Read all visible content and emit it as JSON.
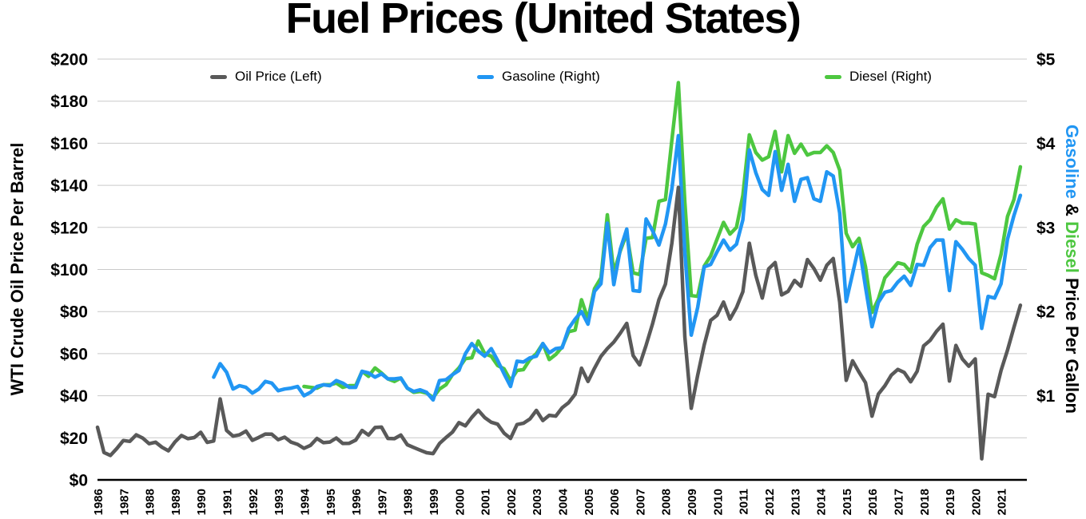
{
  "title": "Fuel Prices (United States)",
  "legend": {
    "items": [
      {
        "label": "Oil Price (Left)",
        "color": "#595959"
      },
      {
        "label": "Gasoline (Right)",
        "color": "#2196F3"
      },
      {
        "label": "Diesel (Right)",
        "color": "#4DC740"
      }
    ]
  },
  "left_axis": {
    "title": "WTI Crude Oil Price Per Barrel",
    "ticks": [
      "$200",
      "$180",
      "$160",
      "$140",
      "$120",
      "$100",
      "$80",
      "$60",
      "$40",
      "$20",
      "$0"
    ]
  },
  "right_axis": {
    "title_parts": [
      {
        "text": "Gasoline",
        "color": "#2196F3"
      },
      {
        "text": " & ",
        "color": "#000000"
      },
      {
        "text": "Diesel",
        "color": "#4DC740"
      },
      {
        "text": " Price Per Gallon",
        "color": "#000000"
      }
    ],
    "ticks": [
      "$5",
      "$4",
      "$3",
      "$2",
      "$1"
    ]
  },
  "x_axis": {
    "years": [
      "1986",
      "1987",
      "1988",
      "1989",
      "1990",
      "1991",
      "1992",
      "1993",
      "1994",
      "1995",
      "1996",
      "1997",
      "1998",
      "1999",
      "2000",
      "2001",
      "2002",
      "2003",
      "2004",
      "2005",
      "2006",
      "2007",
      "2008",
      "2009",
      "2010",
      "2011",
      "2012",
      "2013",
      "2014",
      "2015",
      "2016",
      "2017",
      "2018",
      "2019",
      "2020",
      "2021"
    ]
  },
  "chart_data": {
    "type": "line",
    "title": "Fuel Prices (United States)",
    "x_unit": "year (quarterly data points)",
    "x_range": [
      1986,
      2022
    ],
    "left_axis_label": "WTI Crude Oil Price Per Barrel",
    "right_axis_label": "Gasoline & Diesel Price Per Gallon",
    "left_ylim": [
      0,
      200
    ],
    "right_ylim": [
      0,
      5
    ],
    "grid": true,
    "gridline_color": "#C9C9C9",
    "legend_position": "top-inside",
    "series": [
      {
        "name": "Oil Price (Left)",
        "axis": "left",
        "color": "#595959",
        "x_start": 1986.0,
        "x_step": 0.25,
        "values": [
          25,
          13,
          11.6,
          14.9,
          18.7,
          18.3,
          21.4,
          19.9,
          17.2,
          17.9,
          15.5,
          13.8,
          18,
          21.1,
          19.6,
          20.1,
          22.6,
          17.8,
          18.5,
          38.5,
          23.5,
          20.8,
          21.4,
          23.2,
          18.8,
          20.2,
          21.8,
          21.7,
          19.1,
          20.3,
          17.9,
          16.9,
          15,
          16.4,
          19.7,
          17.7,
          18,
          19.9,
          17.3,
          17.4,
          18.9,
          23.5,
          21.3,
          24.9,
          25.1,
          19.7,
          19.6,
          21.3,
          16.7,
          15.4,
          14.1,
          12.9,
          12.5,
          17.3,
          20.1,
          22.7,
          27.2,
          25.7,
          29.7,
          33.1,
          29.6,
          27.4,
          26.5,
          22.2,
          19.7,
          26.3,
          26.9,
          28.9,
          33,
          28.2,
          30.7,
          30.3,
          34.3,
          36.7,
          40.7,
          53.1,
          46.8,
          53,
          58.7,
          62.4,
          65.5,
          69.7,
          74.4,
          59.1,
          54.6,
          64,
          74.2,
          85.7,
          93,
          112.6,
          139,
          68,
          34,
          49.8,
          64.1,
          75.8,
          78.2,
          84.5,
          76.4,
          81.9,
          89.4,
          112.5,
          97.2,
          86.4,
          100.3,
          103.3,
          87.9,
          89.6,
          94.8,
          92,
          104.7,
          100.5,
          94.9,
          102,
          105.2,
          84.4,
          47.3,
          56.6,
          51.2,
          46.2,
          30.3,
          40.8,
          44.7,
          49.8,
          52.5,
          51.1,
          46.6,
          51.6,
          63.7,
          66.3,
          70.6,
          74,
          47,
          63.9,
          57.5,
          54,
          57.5,
          10,
          40.7,
          39.6,
          52,
          61.7,
          72.5,
          83
        ]
      },
      {
        "name": "Gasoline (Right)",
        "axis": "right",
        "color": "#2196F3",
        "x_start": 1990.5,
        "x_step": 0.25,
        "values": [
          1.22,
          1.38,
          1.28,
          1.08,
          1.12,
          1.1,
          1.03,
          1.08,
          1.17,
          1.15,
          1.06,
          1.08,
          1.09,
          1.11,
          1.0,
          1.04,
          1.11,
          1.13,
          1.12,
          1.18,
          1.15,
          1.1,
          1.1,
          1.29,
          1.27,
          1.22,
          1.26,
          1.2,
          1.2,
          1.21,
          1.09,
          1.05,
          1.07,
          1.04,
          0.95,
          1.18,
          1.19,
          1.25,
          1.3,
          1.5,
          1.62,
          1.53,
          1.47,
          1.56,
          1.42,
          1.26,
          1.11,
          1.41,
          1.4,
          1.45,
          1.47,
          1.62,
          1.51,
          1.56,
          1.57,
          1.8,
          1.91,
          2.0,
          1.85,
          2.24,
          2.33,
          3.05,
          2.32,
          2.74,
          2.98,
          2.25,
          2.24,
          3.1,
          2.96,
          2.79,
          3.04,
          3.46,
          4.09,
          2.7,
          1.72,
          2.05,
          2.53,
          2.56,
          2.71,
          2.85,
          2.73,
          2.8,
          3.09,
          3.92,
          3.65,
          3.45,
          3.38,
          3.9,
          3.44,
          3.75,
          3.31,
          3.57,
          3.59,
          3.34,
          3.31,
          3.66,
          3.61,
          3.17,
          2.12,
          2.45,
          2.79,
          2.29,
          1.82,
          2.11,
          2.23,
          2.25,
          2.35,
          2.42,
          2.31,
          2.56,
          2.55,
          2.76,
          2.85,
          2.85,
          2.25,
          2.83,
          2.74,
          2.63,
          2.55,
          1.8,
          2.18,
          2.16,
          2.33,
          2.86,
          3.14,
          3.38
        ]
      },
      {
        "name": "Diesel (Right)",
        "axis": "right",
        "color": "#4DC740",
        "x_start": 1994.0,
        "x_step": 0.25,
        "values": [
          1.11,
          1.1,
          1.09,
          1.13,
          1.13,
          1.15,
          1.1,
          1.12,
          1.12,
          1.29,
          1.23,
          1.33,
          1.27,
          1.2,
          1.17,
          1.21,
          1.09,
          1.04,
          1.05,
          1.03,
          0.98,
          1.08,
          1.13,
          1.25,
          1.33,
          1.44,
          1.45,
          1.65,
          1.5,
          1.47,
          1.36,
          1.32,
          1.18,
          1.3,
          1.31,
          1.43,
          1.5,
          1.62,
          1.43,
          1.49,
          1.58,
          1.76,
          1.78,
          2.14,
          1.91,
          2.27,
          2.4,
          3.15,
          2.46,
          2.72,
          2.93,
          2.46,
          2.44,
          2.87,
          2.88,
          3.31,
          3.33,
          4.04,
          4.72,
          3.3,
          2.19,
          2.18,
          2.54,
          2.66,
          2.86,
          3.06,
          2.92,
          3.0,
          3.38,
          4.1,
          3.89,
          3.8,
          3.84,
          4.14,
          3.66,
          4.09,
          3.88,
          3.99,
          3.86,
          3.89,
          3.89,
          3.97,
          3.89,
          3.68,
          2.93,
          2.77,
          2.87,
          2.53,
          1.99,
          2.15,
          2.4,
          2.49,
          2.58,
          2.56,
          2.47,
          2.8,
          3.01,
          3.09,
          3.24,
          3.34,
          2.98,
          3.09,
          3.05,
          3.05,
          3.04,
          2.46,
          2.43,
          2.39,
          2.68,
          3.13,
          3.33,
          3.72
        ]
      }
    ]
  }
}
